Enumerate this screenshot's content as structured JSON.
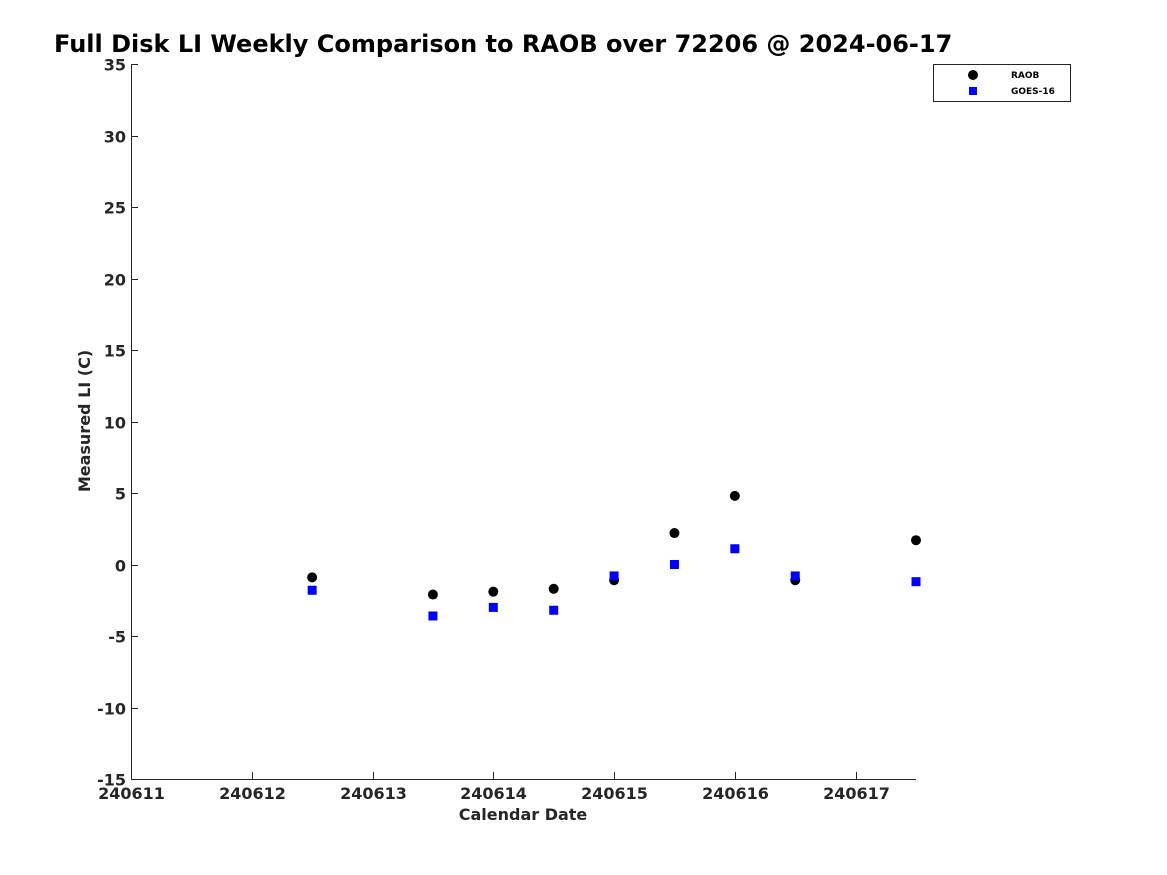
{
  "chart_data": {
    "type": "scatter",
    "title": "Full Disk LI Weekly Comparison to RAOB over 72206 @ 2024-06-17",
    "xlabel": "Calendar Date",
    "ylabel": "Measured LI (C)",
    "xlim": [
      "2024-06-11",
      "2024-06-17 12:00"
    ],
    "ylim": [
      -15,
      35
    ],
    "x_tick_labels": [
      "240611",
      "240612",
      "240613",
      "240614",
      "240615",
      "240616",
      "240617"
    ],
    "y_tick_labels": [
      "35",
      "30",
      "25",
      "20",
      "15",
      "10",
      "5",
      "0",
      "-5",
      "-10",
      "-15"
    ],
    "y_ticks": [
      35,
      30,
      25,
      20,
      15,
      10,
      5,
      0,
      -5,
      -10,
      -15
    ],
    "grid": false,
    "legend_position": "top-right",
    "series": [
      {
        "name": "RAOB",
        "marker": "circle",
        "color": "#000000",
        "points": [
          {
            "x": "2024-06-12 12:00",
            "y": -0.9
          },
          {
            "x": "2024-06-13 12:00",
            "y": -2.1
          },
          {
            "x": "2024-06-14 00:00",
            "y": -1.9
          },
          {
            "x": "2024-06-14 12:00",
            "y": -1.7
          },
          {
            "x": "2024-06-15 00:00",
            "y": -1.1
          },
          {
            "x": "2024-06-15 12:00",
            "y": 2.2
          },
          {
            "x": "2024-06-16 00:00",
            "y": 4.8
          },
          {
            "x": "2024-06-16 12:00",
            "y": -1.1
          },
          {
            "x": "2024-06-17 12:00",
            "y": 1.7
          }
        ]
      },
      {
        "name": "GOES-16",
        "marker": "square",
        "color": "#0000ff",
        "points": [
          {
            "x": "2024-06-12 12:00",
            "y": -1.8
          },
          {
            "x": "2024-06-13 12:00",
            "y": -3.6
          },
          {
            "x": "2024-06-14 00:00",
            "y": -3.0
          },
          {
            "x": "2024-06-14 12:00",
            "y": -3.2
          },
          {
            "x": "2024-06-15 00:00",
            "y": -0.8
          },
          {
            "x": "2024-06-15 12:00",
            "y": 0.0
          },
          {
            "x": "2024-06-16 00:00",
            "y": 1.1
          },
          {
            "x": "2024-06-16 12:00",
            "y": -0.8
          },
          {
            "x": "2024-06-17 12:00",
            "y": -1.2
          }
        ]
      }
    ]
  }
}
